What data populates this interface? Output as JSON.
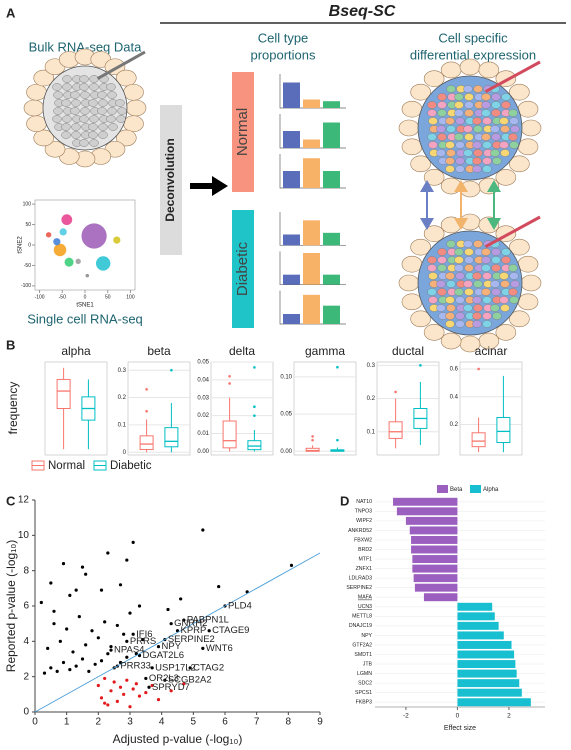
{
  "panel_a": {
    "label": "A",
    "title": "Bseq-SC",
    "bulk": "Bulk RNA-seq Data",
    "single_cell": "Single cell RNA-seq",
    "deconvolution": "Deconvolution",
    "proportions_title": [
      "Cell type",
      "proportions"
    ],
    "de_title": [
      "Cell specific",
      "differential expression"
    ]
  },
  "panel_b": {
    "label": "B"
  },
  "panel_c": {
    "label": "C"
  },
  "panel_d": {
    "label": "D"
  },
  "chart_data": [
    {
      "type": "scatter",
      "xlabel": "tSNE1",
      "ylabel": "tSNE2",
      "x": [
        -40,
        20,
        40,
        -55,
        -62,
        -35,
        70,
        -15,
        -80,
        -48,
        5
      ],
      "values": [
        62,
        22,
        -45,
        -12,
        8,
        -42,
        12,
        -40,
        25,
        32,
        -75
      ],
      "sizes": [
        6,
        14,
        8,
        7,
        4,
        5,
        4,
        3,
        3,
        4,
        2
      ],
      "colors": [
        "#e6398a",
        "#9b59b6",
        "#1ec0d0",
        "#f39c12",
        "#3b7dd8",
        "#2ecc71",
        "#d4c219",
        "#999999",
        "#e74c3c",
        "#48c9e0",
        "#888888"
      ],
      "xlim": [
        -110,
        110
      ],
      "ylim": [
        -110,
        110
      ],
      "xticks": [
        -100,
        -50,
        0,
        50,
        100
      ],
      "yticks": [
        100,
        50,
        0,
        -50,
        -100
      ]
    },
    {
      "type": "mini-bars",
      "colors": [
        "#5a6dbb",
        "#f7b267",
        "#3cb878"
      ],
      "ylim": [
        0,
        40
      ],
      "groups": [
        {
          "name": "Normal",
          "color": "#f7937e",
          "bars": [
            [
              30,
              10,
              8
            ],
            [
              20,
              10,
              30
            ],
            [
              20,
              35,
              20
            ]
          ]
        },
        {
          "name": "Diabetic",
          "color": "#1fc4c8",
          "bars": [
            [
              13,
              30,
              15
            ],
            [
              12,
              38,
              12
            ],
            [
              12,
              35,
              22
            ]
          ]
        }
      ]
    },
    {
      "type": "box",
      "ylabel": "frequency",
      "legend": [
        {
          "name": "Normal",
          "color": "#f8766d"
        },
        {
          "name": "Diabetic",
          "color": "#00bfc4"
        }
      ],
      "panels": [
        {
          "title": "alpha",
          "ylim": [
            0.2,
            1.0
          ],
          "yticks": [],
          "boxes": [
            {
              "stats": [
                0.25,
                0.6,
                0.75,
                0.85,
                0.95
              ],
              "outliers": []
            },
            {
              "stats": [
                0.25,
                0.5,
                0.6,
                0.7,
                0.85
              ],
              "outliers": []
            }
          ]
        },
        {
          "title": "beta",
          "ylim": [
            -0.01,
            0.33
          ],
          "yticks": [
            0,
            0.1,
            0.2,
            0.3
          ],
          "boxes": [
            {
              "stats": [
                0,
                0.01,
                0.03,
                0.06,
                0.12
              ],
              "outliers": [
                0.15,
                0.23
              ]
            },
            {
              "stats": [
                0,
                0.02,
                0.04,
                0.09,
                0.18
              ],
              "outliers": [
                0.3
              ]
            }
          ]
        },
        {
          "title": "delta",
          "ylim": [
            -0.002,
            0.05
          ],
          "yticks": [
            {
              "value": 0,
              "label": "0.00"
            },
            0.01,
            0.02,
            0.03,
            0.04,
            0.05
          ],
          "boxes": [
            {
              "stats": [
                0,
                0.002,
                0.006,
                0.017,
                0.03
              ],
              "outliers": [
                0.038,
                0.042
              ]
            },
            {
              "stats": [
                0,
                0.001,
                0.003,
                0.006,
                0.012
              ],
              "outliers": [
                0.02,
                0.025,
                0.047
              ]
            }
          ]
        },
        {
          "title": "gamma",
          "ylim": [
            -0.005,
            0.12
          ],
          "yticks": [
            {
              "value": 0,
              "label": "0.00"
            },
            0.05,
            {
              "value": 0.1,
              "label": "0.10"
            }
          ],
          "boxes": [
            {
              "stats": [
                0,
                0,
                0.001,
                0.004,
                0.008
              ],
              "outliers": [
                0.015,
                0.02
              ]
            },
            {
              "stats": [
                0,
                0,
                0.001,
                0.002,
                0.005
              ],
              "outliers": [
                0.015,
                0.113
              ]
            }
          ]
        },
        {
          "title": "ductal",
          "ylim": [
            0.03,
            0.31
          ],
          "yticks": [
            0.1,
            0.2,
            0.3
          ],
          "boxes": [
            {
              "stats": [
                0.05,
                0.08,
                0.1,
                0.13,
                0.2
              ],
              "outliers": [
                0.22
              ]
            },
            {
              "stats": [
                0.06,
                0.11,
                0.14,
                0.17,
                0.25
              ],
              "outliers": [
                0.3
              ]
            }
          ]
        },
        {
          "title": "acinar",
          "ylim": [
            -0.02,
            0.65
          ],
          "yticks": [
            0.2,
            0.4,
            0.6
          ],
          "boxes": [
            {
              "stats": [
                0,
                0.04,
                0.08,
                0.14,
                0.25
              ],
              "outliers": [
                0.6
              ]
            },
            {
              "stats": [
                0,
                0.07,
                0.15,
                0.25,
                0.55
              ],
              "outliers": []
            }
          ]
        }
      ]
    },
    {
      "type": "scatter",
      "xlabel": "Adjusted p-value (-log₁₀)",
      "ylabel": "Reported p-value (-log₁₀)",
      "xlim": [
        0,
        9
      ],
      "ylim": [
        0,
        12
      ],
      "xticks": [
        0,
        1,
        2,
        3,
        4,
        5,
        6,
        7,
        8,
        9
      ],
      "yticks": [
        0,
        2,
        4,
        6,
        8,
        10,
        12
      ],
      "diagonal_color": "#4a9fd8",
      "series": [
        {
          "color": "#000000",
          "x": [
            0.3,
            0.5,
            0.7,
            0.9,
            1.1,
            1.3,
            1.5,
            1.7,
            1.9,
            2.1,
            2.3,
            2.5,
            2.7,
            2.9,
            0.4,
            0.8,
            1.2,
            1.6,
            2.0,
            2.4,
            2.8,
            3.2,
            0.6,
            1.0,
            1.4,
            1.8,
            2.2,
            2.6,
            3.0,
            3.4,
            0.2,
            0.5,
            1.1,
            1.6,
            2.1,
            2.7,
            3.3,
            4.2,
            4.6,
            5.3,
            5.8,
            6.7,
            8.1,
            1.5,
            0.9,
            2.9,
            2.3,
            3.1,
            0.6,
            1.3
          ],
          "values": [
            2.2,
            2.5,
            2.3,
            2.8,
            2.4,
            2.6,
            3.0,
            2.3,
            2.7,
            2.9,
            3.3,
            2.5,
            2.8,
            3.1,
            3.6,
            4.0,
            3.4,
            3.8,
            4.2,
            3.7,
            4.4,
            3.3,
            5.0,
            4.7,
            5.4,
            4.6,
            5.1,
            4.9,
            5.6,
            4.1,
            6.2,
            7.3,
            6.6,
            7.8,
            6.9,
            7.2,
            6.0,
            5.8,
            6.4,
            10.3,
            7.1,
            6.8,
            8.3,
            8.2,
            8.4,
            8.6,
            9.0,
            9.6,
            5.7,
            6.9
          ]
        },
        {
          "color": "#e31a1c",
          "x": [
            2.0,
            2.1,
            2.2,
            2.3,
            2.4,
            2.5,
            2.6,
            2.7,
            2.8,
            2.9,
            3.0,
            3.1,
            3.2,
            3.3,
            3.5,
            3.7,
            3.9,
            4.3,
            4.7,
            2.2
          ],
          "values": [
            1.5,
            0.8,
            1.9,
            0.4,
            1.2,
            1.7,
            0.6,
            1.4,
            1.0,
            1.8,
            0.3,
            1.3,
            1.6,
            0.9,
            1.1,
            1.5,
            0.7,
            1.2,
            1.6,
            0.5
          ]
        },
        {
          "color": "#000000",
          "labels": [
            "PLD4",
            "GNRH2",
            "PABPN1L",
            "KPRP",
            "CTAGE9",
            "SERPINE2",
            "IFI6",
            "PRRS",
            "NPY",
            "NPAS4",
            "WNT6",
            "DGAT2L6",
            "PRR33",
            "USP17L2",
            "CTAG2",
            "OR2L3",
            "SCGB2A2",
            "SPRYD7"
          ],
          "x": [
            6.0,
            4.3,
            4.7,
            4.5,
            5.5,
            4.1,
            3.1,
            2.9,
            3.9,
            2.4,
            5.3,
            3.3,
            2.6,
            3.7,
            4.9,
            3.5,
            4.1,
            3.6
          ],
          "values": [
            6.0,
            5.0,
            5.2,
            4.6,
            4.6,
            4.1,
            4.4,
            4.0,
            3.7,
            3.5,
            3.6,
            3.2,
            2.6,
            2.5,
            2.5,
            1.9,
            1.8,
            1.4
          ]
        }
      ]
    },
    {
      "type": "hbar",
      "xlabel": "Effect size",
      "xlim": [
        -3.2,
        3.4
      ],
      "xticks": [
        -2,
        0,
        2
      ],
      "categories": [
        "NAT10",
        "TNPO3",
        "WIPF2",
        "ANKRD52",
        "FBXW2",
        "BRD2",
        "MTF1",
        "ZNFX1",
        "LDLRAD3",
        "SERPINE2",
        "MAFA",
        "UCN3",
        "METTL8",
        "DNAJC19",
        "NPY",
        "GTF2A2",
        "SMDT1",
        "JTB",
        "LGMN",
        "SDC2",
        "SPCS1",
        "FKBP3"
      ],
      "underlined": [
        10,
        11
      ],
      "series": [
        {
          "name": "Beta",
          "color": "#9b5fc0",
          "values": [
            -2.5,
            -2.35,
            -2.0,
            -1.85,
            -1.8,
            -1.8,
            -1.75,
            -1.75,
            -1.7,
            -1.65,
            -1.3,
            null,
            null,
            null,
            null,
            null,
            null,
            null,
            null,
            null,
            null,
            null
          ]
        },
        {
          "name": "Alpha",
          "color": "#17bfd1",
          "values": [
            null,
            null,
            null,
            null,
            null,
            null,
            null,
            null,
            null,
            null,
            null,
            1.35,
            1.45,
            1.6,
            1.8,
            2.1,
            2.2,
            2.25,
            2.3,
            2.4,
            2.5,
            2.85
          ]
        }
      ]
    }
  ]
}
